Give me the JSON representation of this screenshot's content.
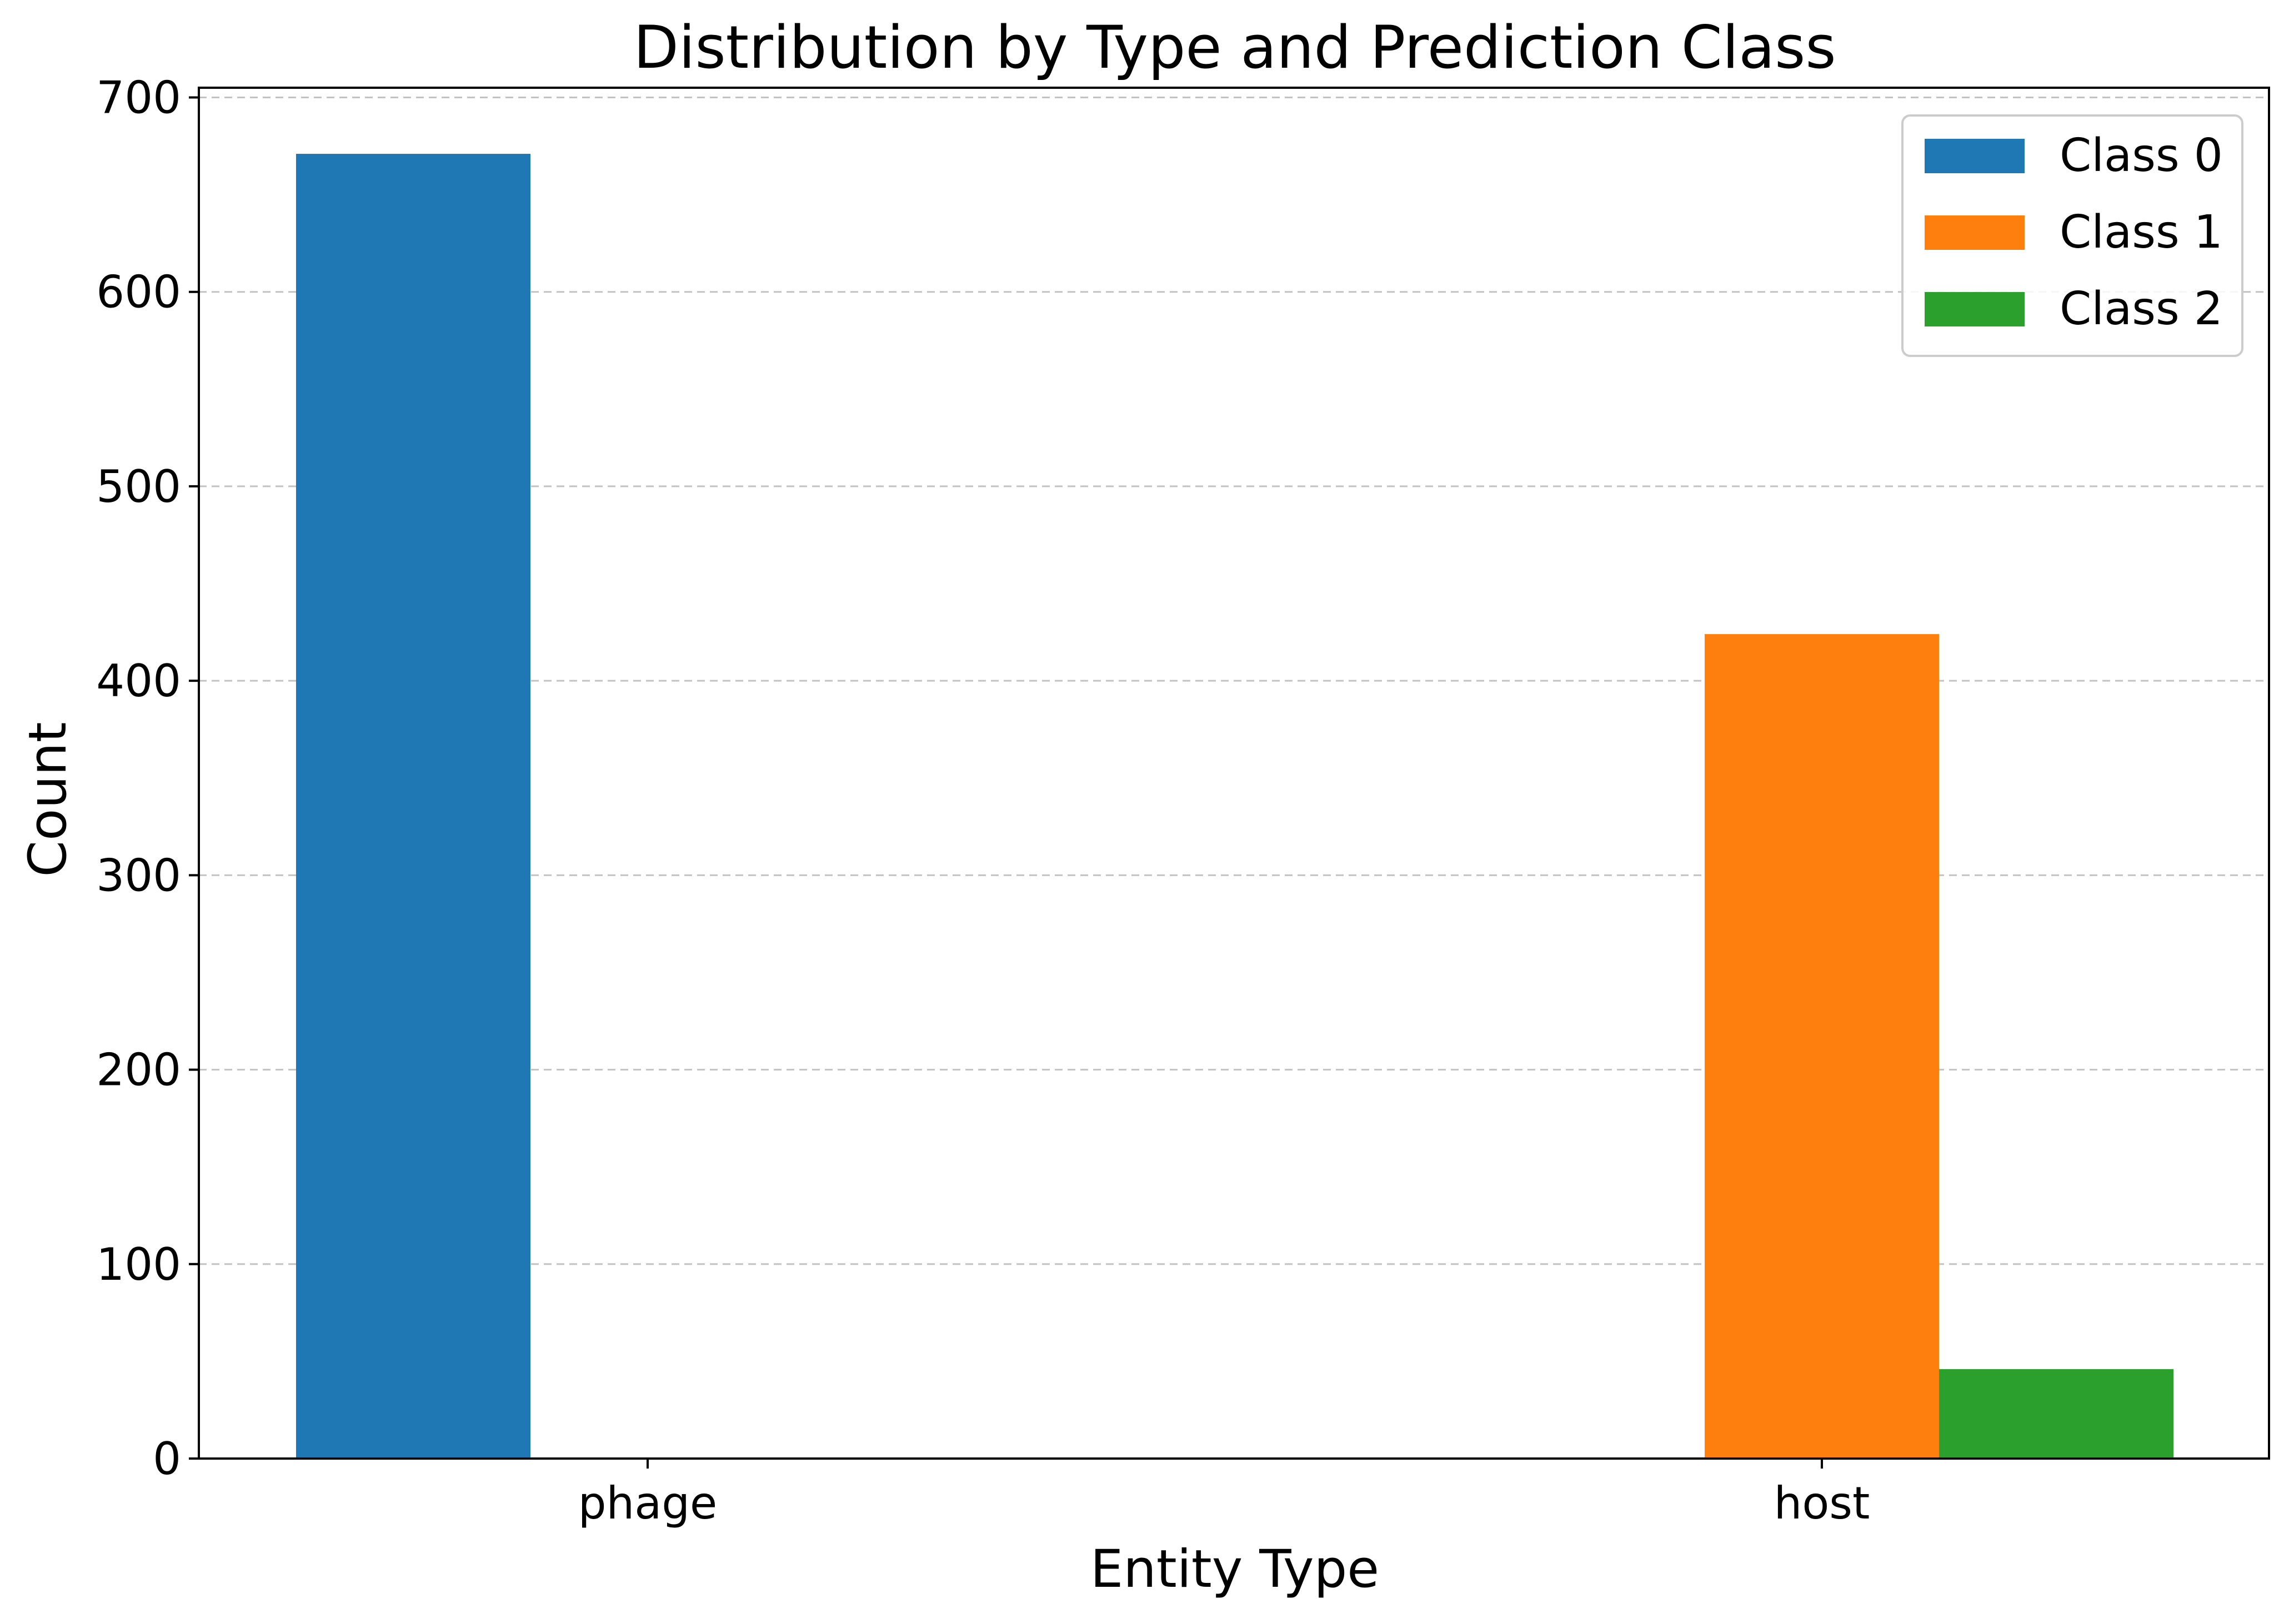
{
  "chart_data": {
    "type": "bar",
    "title": "Distribution by Type and Prediction Class",
    "xlabel": "Entity Type",
    "ylabel": "Count",
    "categories": [
      "phage",
      "host"
    ],
    "series": [
      {
        "name": "Class 0",
        "color": "#1f77b4",
        "values": [
          671,
          0
        ]
      },
      {
        "name": "Class 1",
        "color": "#ff7f0e",
        "values": [
          0,
          424
        ]
      },
      {
        "name": "Class 2",
        "color": "#2ca02c",
        "values": [
          0,
          46
        ]
      }
    ],
    "ylim": [
      0,
      705
    ],
    "yticks": [
      0,
      100,
      200,
      300,
      400,
      500,
      600,
      700
    ],
    "grid": "y-dashed",
    "legend_position": "top-right"
  }
}
